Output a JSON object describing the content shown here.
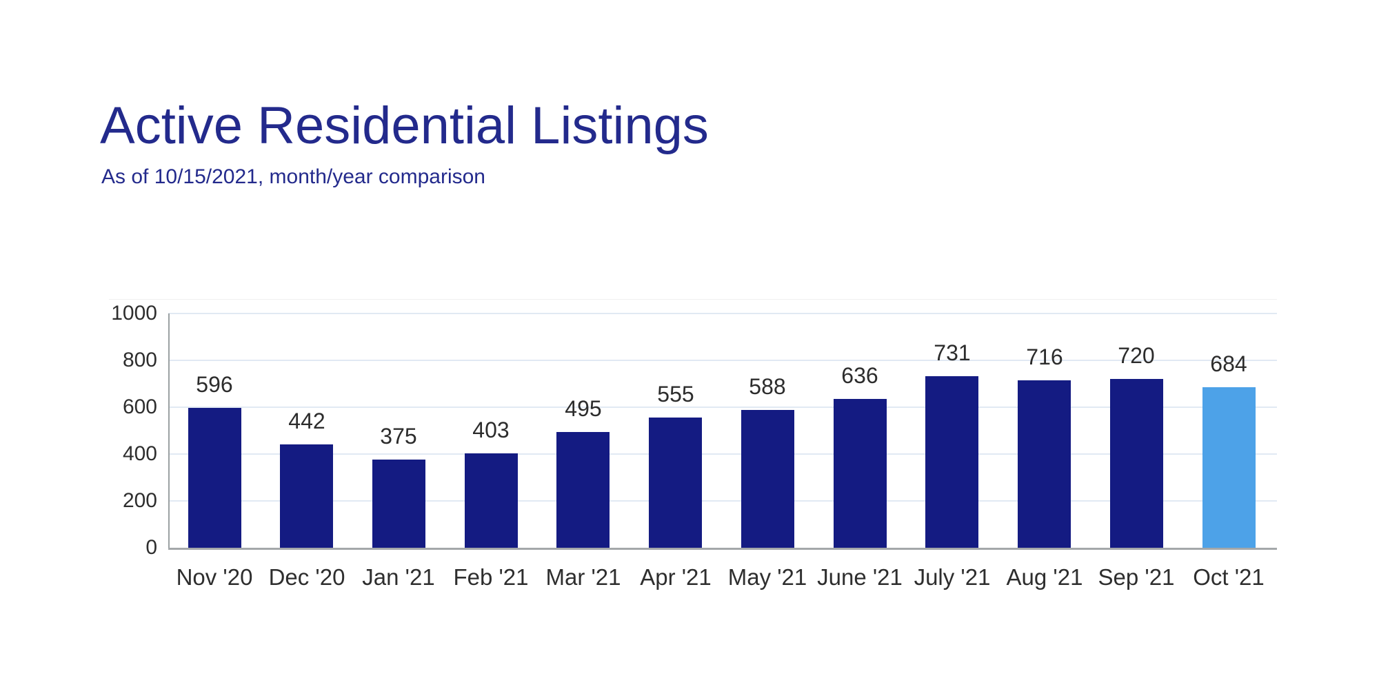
{
  "page": {
    "title": "Active Residential Listings",
    "subtitle": "As of 10/15/2021, month/year comparison",
    "title_color": "#232a8c",
    "background_color": "#ffffff"
  },
  "chart_data": {
    "type": "bar",
    "title": "Active Residential Listings",
    "subtitle": "As of 10/15/2021, month/year comparison",
    "categories": [
      "Nov '20",
      "Dec '20",
      "Jan '21",
      "Feb '21",
      "Mar '21",
      "Apr '21",
      "May '21",
      "June '21",
      "July '21",
      "Aug '21",
      "Sep '21",
      "Oct '21"
    ],
    "values": [
      596,
      442,
      375,
      403,
      495,
      555,
      588,
      636,
      731,
      716,
      720,
      684
    ],
    "highlight_index": 11,
    "xlabel": "",
    "ylabel": "",
    "ylim": [
      0,
      1000
    ],
    "yticks": [
      0,
      200,
      400,
      600,
      800,
      1000
    ],
    "grid": true,
    "legend": "none",
    "style": {
      "bar_color": "#141b82",
      "highlight_bar_color": "#4da2e8",
      "grid_color": "#e1e9f3",
      "axis_color": "#9ba1a3",
      "baseline_color": "#a4a8aa",
      "tick_label_color": "#2e2e2e",
      "value_label_color": "#2c2c2c"
    }
  }
}
